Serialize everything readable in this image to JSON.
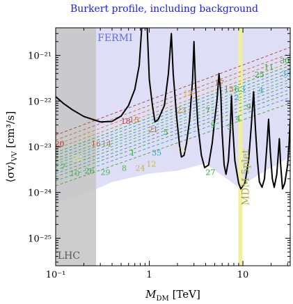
{
  "chart_data": {
    "type": "line",
    "title": "Burkert profile, including background",
    "xlabel_main": "M",
    "xlabel_sub": "DM",
    "xlabel_unit": " [TeV]",
    "ylabel_main": "⟨σv⟩",
    "ylabel_sub": "VV",
    "ylabel_unit": " [cm³/s]",
    "x_scale": "log",
    "y_scale": "log",
    "xlim": [
      0.1,
      32
    ],
    "ylim": [
      2.5e-26,
      4e-21
    ],
    "x_ticks": [
      {
        "value": 0.1,
        "label": "10⁻¹"
      },
      {
        "value": 1,
        "label": "1"
      },
      {
        "value": 10,
        "label": "10"
      }
    ],
    "y_ticks": [
      {
        "value": 1e-25,
        "label": "10⁻²⁵"
      },
      {
        "value": 1e-24,
        "label": "10⁻²⁴"
      },
      {
        "value": 1e-23,
        "label": "10⁻²³"
      },
      {
        "value": 1e-22,
        "label": "10⁻²²"
      },
      {
        "value": 1e-21,
        "label": "10⁻²¹"
      }
    ],
    "regions": {
      "lhc": {
        "label": "LHC",
        "x_range": [
          0.1,
          0.27
        ],
        "color": "#c8c8c8"
      },
      "fermi": {
        "label": "FERMI",
        "color": "#d8d8f4",
        "label_color": "#6a6ad8"
      },
      "mdm": {
        "label": "MDM 5plet",
        "x": 9.4,
        "color": "#f0f0a0",
        "label_color": "#a8a830"
      }
    },
    "fermi_boundary": [
      [
        0.1,
        6e-25
      ],
      [
        0.2,
        9e-25
      ],
      [
        0.4,
        1.7e-24
      ],
      [
        1,
        2.6e-24
      ],
      [
        2,
        3e-24
      ],
      [
        4,
        4.3e-24
      ],
      [
        9,
        1.3e-24
      ],
      [
        15,
        2.5e-24
      ],
      [
        32,
        6e-24
      ]
    ],
    "black_curve": [
      [
        0.1,
        1.25e-22
      ],
      [
        0.12,
        9e-23
      ],
      [
        0.15,
        6.5e-23
      ],
      [
        0.2,
        4.6e-23
      ],
      [
        0.3,
        3.5e-23
      ],
      [
        0.4,
        3.6e-23
      ],
      [
        0.5,
        4.7e-23
      ],
      [
        0.6,
        8e-23
      ],
      [
        0.7,
        1.8e-22
      ],
      [
        0.78,
        6e-22
      ],
      [
        0.83,
        4e-21
      ],
      [
        0.95,
        4e-21
      ],
      [
        1.0,
        3e-22
      ],
      [
        1.08,
        8e-23
      ],
      [
        1.15,
        3.5e-23
      ],
      [
        1.25,
        4e-23
      ],
      [
        1.45,
        8e-23
      ],
      [
        1.6,
        4e-22
      ],
      [
        1.72,
        3e-21
      ],
      [
        1.8,
        4e-22
      ],
      [
        1.95,
        5e-23
      ],
      [
        2.1,
        1.1e-23
      ],
      [
        2.2,
        6e-24
      ],
      [
        2.35,
        6.5e-24
      ],
      [
        2.5,
        1.2e-23
      ],
      [
        2.7,
        4e-23
      ],
      [
        2.9,
        3e-22
      ],
      [
        3.0,
        2e-21
      ],
      [
        3.1,
        3e-22
      ],
      [
        3.3,
        3e-23
      ],
      [
        3.6,
        6.5e-24
      ],
      [
        3.9,
        3.5e-24
      ],
      [
        4.3,
        4e-24
      ],
      [
        4.7,
        1.2e-23
      ],
      [
        5.0,
        4e-23
      ],
      [
        5.3,
        1.1e-22
      ],
      [
        5.55,
        4e-22
      ],
      [
        5.8,
        1.5e-22
      ],
      [
        6.0,
        2e-23
      ],
      [
        6.3,
        4e-24
      ],
      [
        6.6,
        2.5e-24
      ],
      [
        7.0,
        5e-24
      ],
      [
        7.3,
        2e-23
      ],
      [
        7.55,
        1.3e-22
      ],
      [
        7.8,
        2.5e-23
      ],
      [
        8.2,
        5e-24
      ],
      [
        9.0,
        1.6e-24
      ],
      [
        9.5,
        1.2e-24
      ],
      [
        10.5,
        1.6e-24
      ],
      [
        11.5,
        5e-24
      ],
      [
        12.3,
        3e-23
      ],
      [
        13.0,
        1.6e-22
      ],
      [
        13.6,
        2.5e-23
      ],
      [
        14.3,
        5e-24
      ],
      [
        15.0,
        1.7e-24
      ],
      [
        16.0,
        1.3e-24
      ],
      [
        17.0,
        2e-24
      ],
      [
        18.0,
        1e-23
      ],
      [
        18.8,
        4e-23
      ],
      [
        19.6,
        8e-24
      ],
      [
        20.6,
        2e-24
      ],
      [
        21.6,
        1.3e-24
      ],
      [
        23.0,
        2.5e-24
      ],
      [
        24.5,
        1.5e-23
      ],
      [
        25.3,
        4e-24
      ],
      [
        26.5,
        1.2e-24
      ],
      [
        28.0,
        1.6e-24
      ],
      [
        30.0,
        4e-24
      ],
      [
        31.0,
        1e-23
      ],
      [
        32,
        4e-23
      ]
    ],
    "dashed_lines": [
      {
        "color": "#b03838",
        "start": [
          0.1,
          1.8e-23
        ],
        "end": [
          32,
          1.5e-21
        ]
      },
      {
        "color": "#c86030",
        "start": [
          0.1,
          1.4e-23
        ],
        "end": [
          32,
          1.1e-21
        ]
      },
      {
        "color": "#d07030",
        "start": [
          0.1,
          1.1e-23
        ],
        "end": [
          32,
          9e-22
        ]
      },
      {
        "color": "#c08030",
        "start": [
          0.1,
          9e-24
        ],
        "end": [
          32,
          7e-22
        ]
      },
      {
        "color": "#30a030",
        "start": [
          0.1,
          7.5e-24
        ],
        "end": [
          32,
          6e-22
        ]
      },
      {
        "color": "#20a0a0",
        "start": [
          0.1,
          6.5e-24
        ],
        "end": [
          32,
          5e-22
        ]
      },
      {
        "color": "#40a040",
        "start": [
          0.1,
          5.5e-24
        ],
        "end": [
          32,
          4.2e-22
        ]
      },
      {
        "color": "#30a8b8",
        "start": [
          0.1,
          4.8e-24
        ],
        "end": [
          32,
          3.6e-22
        ]
      },
      {
        "color": "#50b050",
        "start": [
          0.1,
          4.2e-24
        ],
        "end": [
          32,
          3e-22
        ]
      },
      {
        "color": "#30b0b0",
        "start": [
          0.1,
          3.6e-24
        ],
        "end": [
          32,
          2.6e-22
        ]
      },
      {
        "color": "#40a040",
        "start": [
          0.1,
          3.1e-24
        ],
        "end": [
          32,
          2.2e-22
        ]
      },
      {
        "color": "#3090c8",
        "start": [
          0.1,
          2.6e-24
        ],
        "end": [
          32,
          1.8e-22
        ]
      },
      {
        "color": "#40a040",
        "start": [
          0.1,
          2.2e-24
        ],
        "end": [
          32,
          1.5e-22
        ]
      },
      {
        "color": "#30a0b0",
        "start": [
          0.1,
          1.8e-24
        ],
        "end": [
          32,
          1.2e-22
        ]
      },
      {
        "color": "#40a040",
        "start": [
          0.1,
          1.4e-24
        ],
        "end": [
          32,
          9e-23
        ]
      }
    ],
    "point_labels": [
      {
        "text": "30",
        "x": 28,
        "y": 6.7e-22,
        "color": "#30a030"
      },
      {
        "text": "11",
        "x": 19,
        "y": 4.8e-22,
        "color": "#30a030"
      },
      {
        "text": "25",
        "x": 15,
        "y": 3.3e-22,
        "color": "#30a030"
      },
      {
        "text": "33",
        "x": 29,
        "y": 3.5e-22,
        "color": "#30a8b8"
      },
      {
        "text": "17",
        "x": 5.6,
        "y": 2.2e-22,
        "color": "#c08030"
      },
      {
        "text": "13",
        "x": 7.1,
        "y": 1.6e-22,
        "color": "#d07030"
      },
      {
        "text": "6",
        "x": 8.6,
        "y": 1.6e-22,
        "color": "#30a030"
      },
      {
        "text": "3",
        "x": 10.0,
        "y": 1.6e-22,
        "color": "#30a8b8"
      },
      {
        "text": "4",
        "x": 15.6,
        "y": 1.5e-22,
        "color": "#30a8b8"
      },
      {
        "text": "2",
        "x": 8.6,
        "y": 1.05e-22,
        "color": "#30a8b8"
      },
      {
        "text": "19",
        "x": 2.6,
        "y": 1.3e-22,
        "color": "#d8c060"
      },
      {
        "text": "23",
        "x": 2.2,
        "y": 5.5e-23,
        "color": "#c08030"
      },
      {
        "text": "7",
        "x": 4.2,
        "y": 5.5e-23,
        "color": "#30a030"
      },
      {
        "text": "9",
        "x": 4.8,
        "y": 2.6e-23,
        "color": "#30a030"
      },
      {
        "text": "5",
        "x": 7.2,
        "y": 2.4e-23,
        "color": "#30a030"
      },
      {
        "text": "4",
        "x": 8.9,
        "y": 3.6e-23,
        "color": "#30a030"
      },
      {
        "text": "9",
        "x": 11.5,
        "y": 6.5e-23,
        "color": "#30a030"
      },
      {
        "text": "18",
        "x": 0.56,
        "y": 3.2e-23,
        "color": "#b03838"
      },
      {
        "text": "15",
        "x": 0.69,
        "y": 3.4e-23,
        "color": "#c86030"
      },
      {
        "text": "21",
        "x": 1.1,
        "y": 2.1e-23,
        "color": "#c86030"
      },
      {
        "text": "5",
        "x": 1.5,
        "y": 1.8e-23,
        "color": "#30a030"
      },
      {
        "text": "20",
        "x": 0.11,
        "y": 1.02e-23,
        "color": "#b03838"
      },
      {
        "text": "16",
        "x": 0.27,
        "y": 1.02e-23,
        "color": "#c86030"
      },
      {
        "text": "14",
        "x": 0.35,
        "y": 1.02e-23,
        "color": "#c08030"
      },
      {
        "text": "1",
        "x": 0.66,
        "y": 6.5e-24,
        "color": "#30a030"
      },
      {
        "text": "22",
        "x": 0.17,
        "y": 5e-24,
        "color": "#e8e0a0"
      },
      {
        "text": "7",
        "x": 0.12,
        "y": 3.2e-24,
        "color": "#40b040"
      },
      {
        "text": "10",
        "x": 0.16,
        "y": 2.3e-24,
        "color": "#50b050"
      },
      {
        "text": "26",
        "x": 0.23,
        "y": 2.6e-24,
        "color": "#40a040"
      },
      {
        "text": "29",
        "x": 0.34,
        "y": 2.4e-24,
        "color": "#50b050"
      },
      {
        "text": "8",
        "x": 0.54,
        "y": 3e-24,
        "color": "#50b050"
      },
      {
        "text": "24",
        "x": 0.8,
        "y": 3e-24,
        "color": "#c8b840"
      },
      {
        "text": "12",
        "x": 1.05,
        "y": 3.7e-24,
        "color": "#c8b840"
      },
      {
        "text": "35",
        "x": 1.2,
        "y": 6.5e-24,
        "color": "#30a8b8"
      },
      {
        "text": "28",
        "x": 2.15,
        "y": 7.5e-24,
        "color": "#e8e0a0"
      },
      {
        "text": "27",
        "x": 4.5,
        "y": 2.4e-24,
        "color": "#30a030"
      }
    ]
  }
}
